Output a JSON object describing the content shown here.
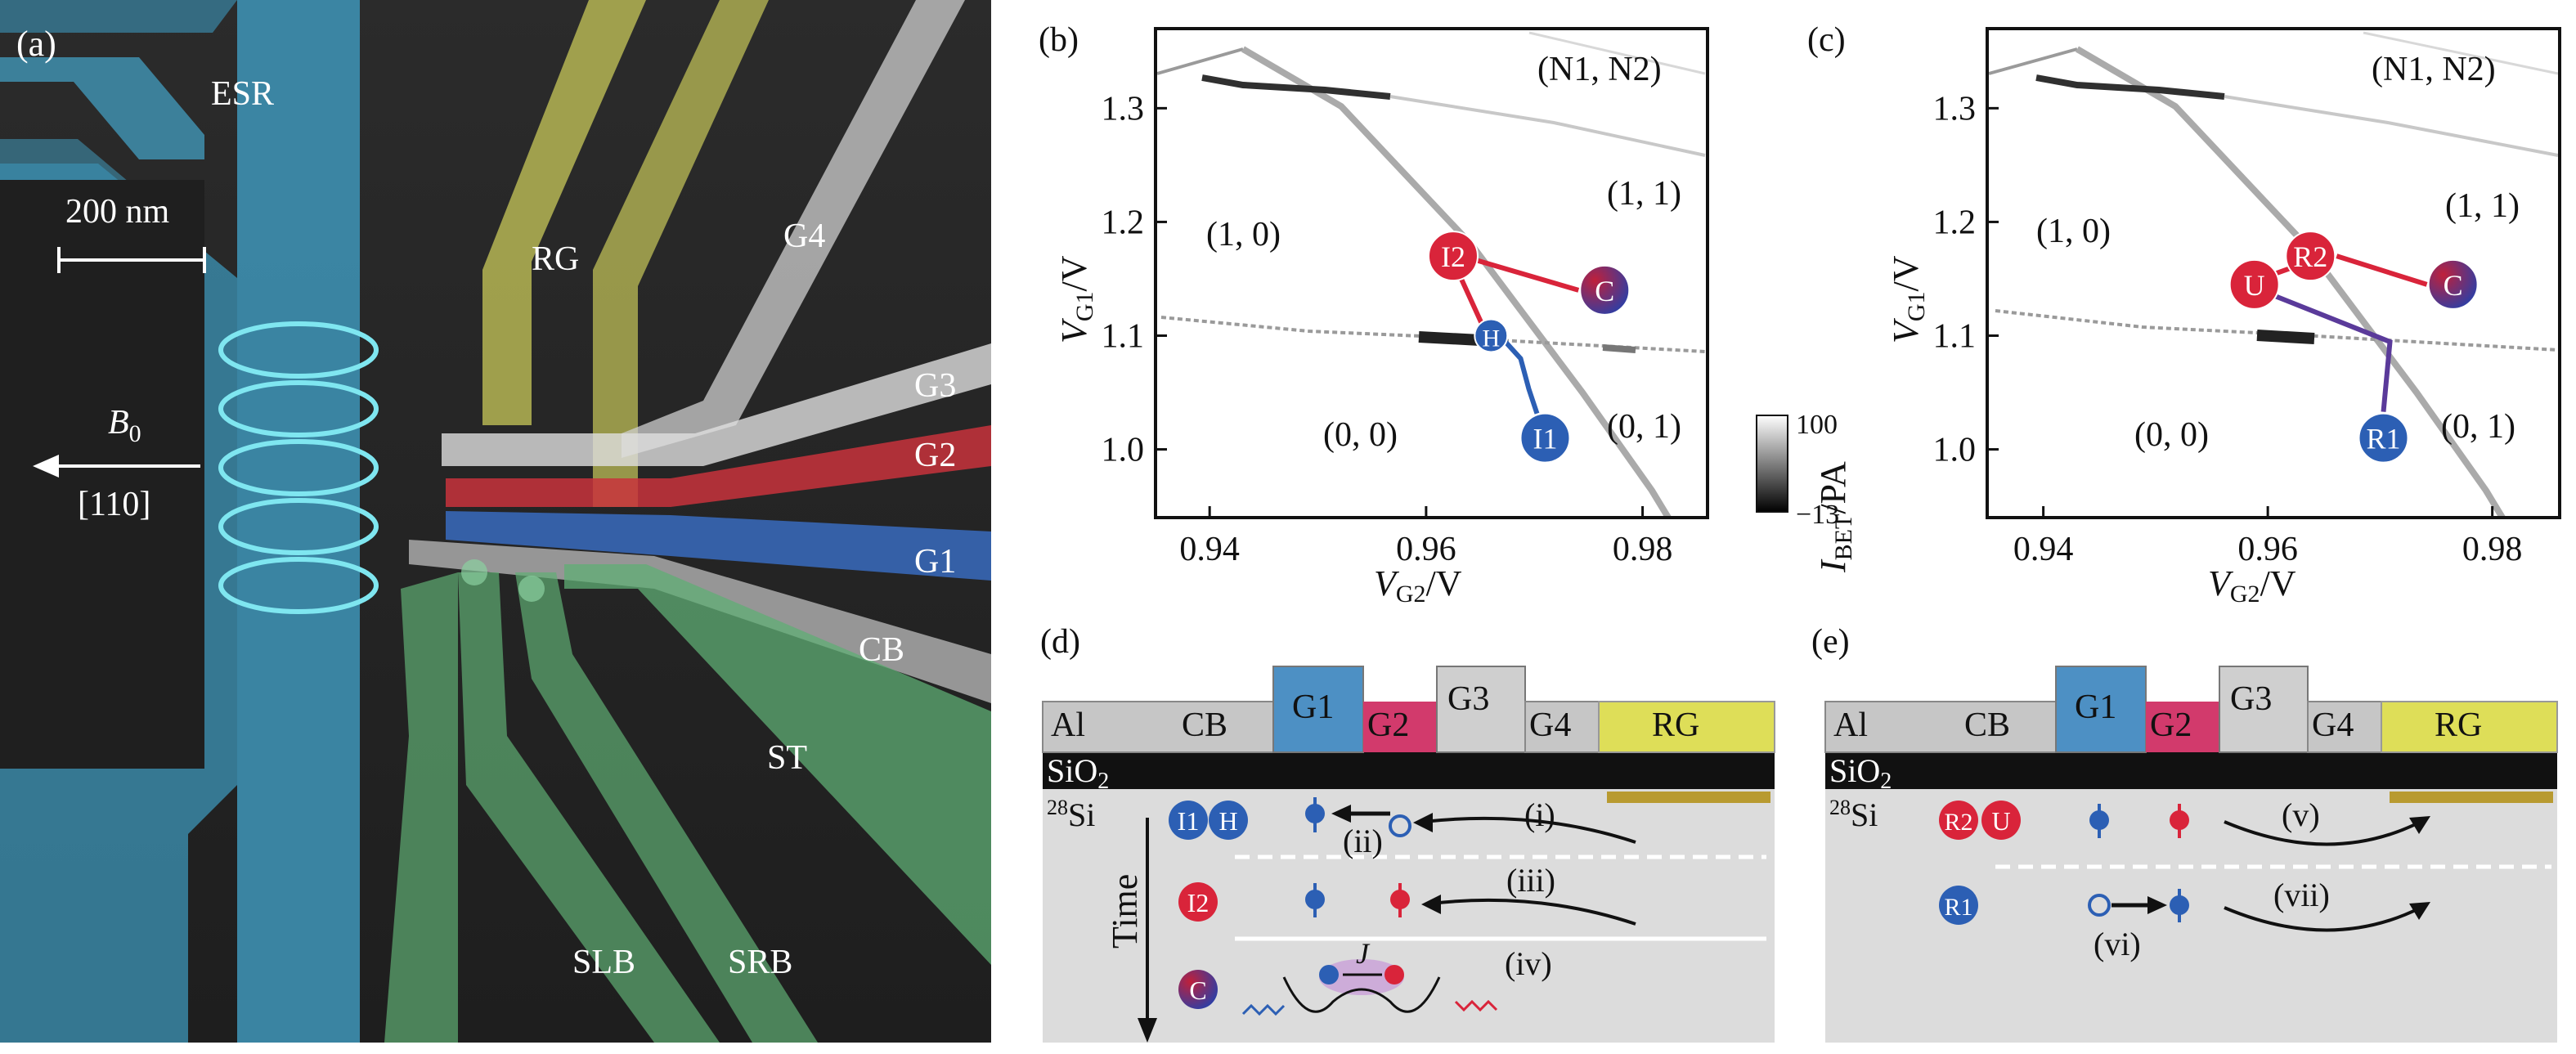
{
  "panel_a": {
    "label": "(a)",
    "labels": {
      "esr": "ESR",
      "scale": "200 nm",
      "b0": "B",
      "b0_sub": "0",
      "direction": "[110]",
      "rg": "RG",
      "g4": "G4",
      "g3": "G3",
      "g2": "G2",
      "g1": "G1",
      "cb": "CB",
      "st": "ST",
      "slb": "SLB",
      "srb": "SRB"
    }
  },
  "panel_b": {
    "label": "(b)",
    "states": {
      "n1n2": "(N1, N2)",
      "s11": "(1, 1)",
      "s10": "(1, 0)",
      "s00": "(0, 0)",
      "s01": "(0, 1)"
    },
    "markers": {
      "i2": "I2",
      "c": "C",
      "h": "H",
      "i1": "I1"
    }
  },
  "panel_c": {
    "label": "(c)",
    "states": {
      "n1n2": "(N1, N2)",
      "s11": "(1, 1)",
      "s10": "(1, 0)",
      "s00": "(0, 0)",
      "s01": "(0, 1)"
    },
    "markers": {
      "r2": "R2",
      "u": "U",
      "c": "C",
      "r1": "R1"
    }
  },
  "chart_data": [
    {
      "type": "heatmap",
      "panel": "(b)",
      "xlabel": "V",
      "xlabel_sub": "G2",
      "xlabel_unit": "/V",
      "ylabel": "V",
      "ylabel_sub": "G1",
      "ylabel_unit": "/V",
      "xlim": [
        0.935,
        0.986
      ],
      "ylim": [
        0.94,
        1.37
      ],
      "xticks": [
        "0.94",
        "0.96",
        "0.98"
      ],
      "xtick_values": [
        0.94,
        0.96,
        0.98
      ],
      "yticks": [
        "1.3",
        "1.2",
        "1.1",
        "1.0"
      ],
      "ytick_values": [
        1.3,
        1.2,
        1.1,
        1.0
      ],
      "points": [
        {
          "name": "I2",
          "x": 0.9625,
          "y": 1.17
        },
        {
          "name": "C",
          "x": 0.9765,
          "y": 1.14
        },
        {
          "name": "H",
          "x": 0.966,
          "y": 1.1
        },
        {
          "name": "I1",
          "x": 0.971,
          "y": 1.01
        }
      ]
    },
    {
      "type": "heatmap",
      "panel": "(c)",
      "xlabel": "V",
      "xlabel_sub": "G2",
      "xlabel_unit": "/V",
      "ylabel": "V",
      "ylabel_sub": "G1",
      "ylabel_unit": "/V",
      "xlim": [
        0.935,
        0.986
      ],
      "ylim": [
        0.94,
        1.37
      ],
      "xticks": [
        "0.94",
        "0.96",
        "0.98"
      ],
      "xtick_values": [
        0.94,
        0.96,
        0.98
      ],
      "yticks": [
        "1.3",
        "1.2",
        "1.1",
        "1.0"
      ],
      "ytick_values": [
        1.3,
        1.2,
        1.1,
        1.0
      ],
      "points": [
        {
          "name": "R2",
          "x": 0.9638,
          "y": 1.17
        },
        {
          "name": "U",
          "x": 0.9588,
          "y": 1.145
        },
        {
          "name": "C",
          "x": 0.9765,
          "y": 1.145
        },
        {
          "name": "R1",
          "x": 0.9703,
          "y": 1.01
        }
      ]
    }
  ],
  "colorbar": {
    "max": "100",
    "min": "−13",
    "label": "I",
    "label_sub": "BET",
    "label_unit": "/PA"
  },
  "panel_d": {
    "label": "(d)",
    "gates": {
      "al": "Al",
      "cb": "CB",
      "g1": "G1",
      "g2": "G2",
      "g3": "G3",
      "g4": "G4",
      "rg": "RG"
    },
    "oxide": "SiO",
    "oxide_sub": "2",
    "si": "Si",
    "si_sup": "28",
    "time": "Time",
    "steps": {
      "i": "(i)",
      "ii": "(ii)",
      "iii": "(iii)",
      "iv": "(iv)"
    },
    "markers": {
      "i1": "I1",
      "h": "H",
      "i2": "I2",
      "c": "C"
    },
    "j": "J"
  },
  "panel_e": {
    "label": "(e)",
    "gates": {
      "al": "Al",
      "cb": "CB",
      "g1": "G1",
      "g2": "G2",
      "g3": "G3",
      "g4": "G4",
      "rg": "RG"
    },
    "oxide": "SiO",
    "oxide_sub": "2",
    "si": "Si",
    "si_sup": "28",
    "steps": {
      "v": "(v)",
      "vi": "(vi)",
      "vii": "(vii)"
    },
    "markers": {
      "r2": "R2",
      "u": "U",
      "r1": "R1"
    }
  },
  "colors": {
    "esr": "#4aa3c8",
    "rg": "#c8c85a",
    "g1": "#3a6fc8",
    "g2": "#c8323c",
    "gates_white": "#d8d8d8",
    "st": "#5fae74",
    "red_marker": "#d9243a",
    "blue_marker": "#2c5fb4",
    "purple_c": "#6b2e8c"
  }
}
